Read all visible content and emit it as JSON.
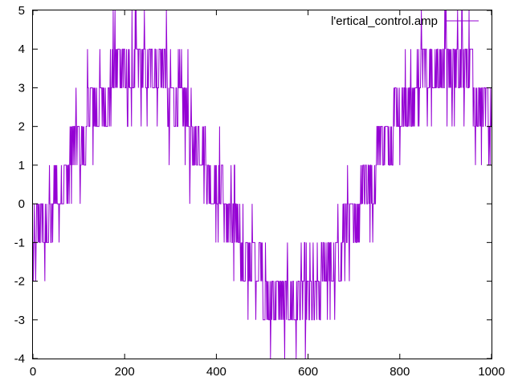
{
  "chart_data": {
    "type": "line",
    "title": "",
    "xlabel": "",
    "ylabel": "",
    "xlim": [
      0,
      1000
    ],
    "ylim": [
      -4,
      5
    ],
    "xticks": [
      0,
      200,
      400,
      600,
      800,
      1000
    ],
    "yticks": [
      -4,
      -3,
      -2,
      -1,
      0,
      1,
      2,
      3,
      4,
      5
    ],
    "grid": false,
    "legend_position": "top-right",
    "series": [
      {
        "name": "l'ertical_control.amp",
        "color": "#9400d3",
        "description_of_shape": "quantized noisy sine wave, integer steps",
        "x_start": 0,
        "x_end": 999,
        "x_step": 1,
        "amplitude": 3,
        "offset": 0.5,
        "period": 667,
        "phase_peak_x": 230,
        "noise_spread": 1,
        "y_min": -4,
        "y_max": 5
      }
    ]
  }
}
